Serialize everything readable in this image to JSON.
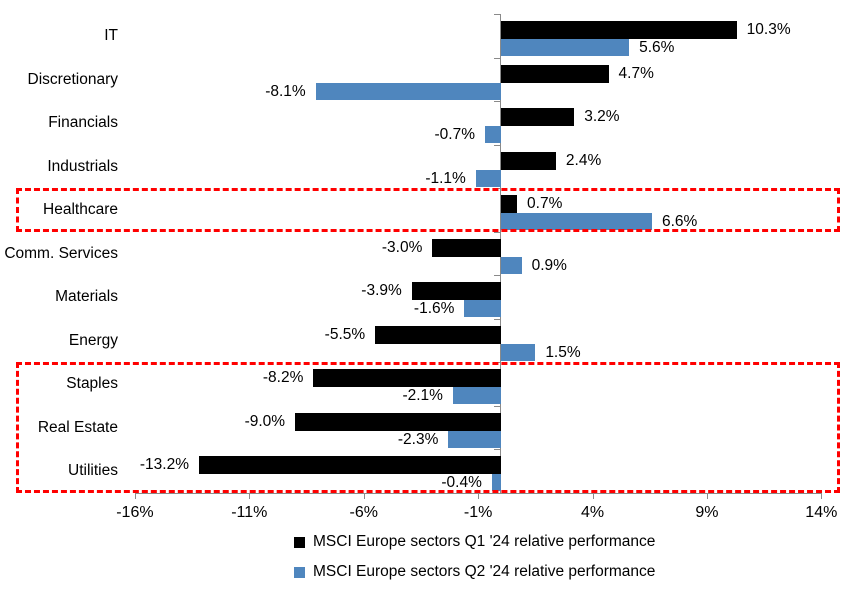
{
  "chart_data": {
    "type": "bar",
    "orientation": "horizontal",
    "title": "",
    "xlabel": "",
    "ylabel": "",
    "categories": [
      "IT",
      "Discretionary",
      "Financials",
      "Industrials",
      "Healthcare",
      "Comm. Services",
      "Materials",
      "Energy",
      "Staples",
      "Real Estate",
      "Utilities"
    ],
    "series": [
      {
        "name": "MSCI Europe sectors Q1 '24 relative performance",
        "color": "#000000",
        "values": [
          10.3,
          4.7,
          3.2,
          2.4,
          0.7,
          -3.0,
          -3.9,
          -5.5,
          -8.2,
          -9.0,
          -13.2
        ],
        "labels": [
          "10.3%",
          "4.7%",
          "3.2%",
          "2.4%",
          "0.7%",
          "-3.0%",
          "-3.9%",
          "-5.5%",
          "-8.2%",
          "-9.0%",
          "-13.2%"
        ]
      },
      {
        "name": "MSCI Europe sectors Q2 '24 relative performance",
        "color": "#4F86BE",
        "values": [
          5.6,
          -8.1,
          -0.7,
          -1.1,
          6.6,
          0.9,
          -1.6,
          1.5,
          -2.1,
          -2.3,
          -0.4
        ],
        "labels": [
          "5.6%",
          "-8.1%",
          "-0.7%",
          "-1.1%",
          "6.6%",
          "0.9%",
          "-1.6%",
          "1.5%",
          "-2.1%",
          "-2.3%",
          "-0.4%"
        ]
      }
    ],
    "x_ticks": [
      {
        "value": -16,
        "label": "-16%"
      },
      {
        "value": -11,
        "label": "-11%"
      },
      {
        "value": -6,
        "label": "-6%"
      },
      {
        "value": -1,
        "label": "-1%"
      },
      {
        "value": 4,
        "label": "4%"
      },
      {
        "value": 9,
        "label": "9%"
      },
      {
        "value": 14,
        "label": "14%"
      }
    ],
    "xlim": [
      -16,
      14
    ],
    "grid": false,
    "legend_position": "bottom",
    "highlight_boxes": [
      {
        "name": "healthcare-highlight",
        "row_start": 4,
        "row_end": 4,
        "color": "#FF0000",
        "style": "dashed"
      },
      {
        "name": "defensive-sectors-highlight",
        "row_start": 8,
        "row_end": 10,
        "color": "#FF0000",
        "style": "dashed"
      }
    ]
  }
}
